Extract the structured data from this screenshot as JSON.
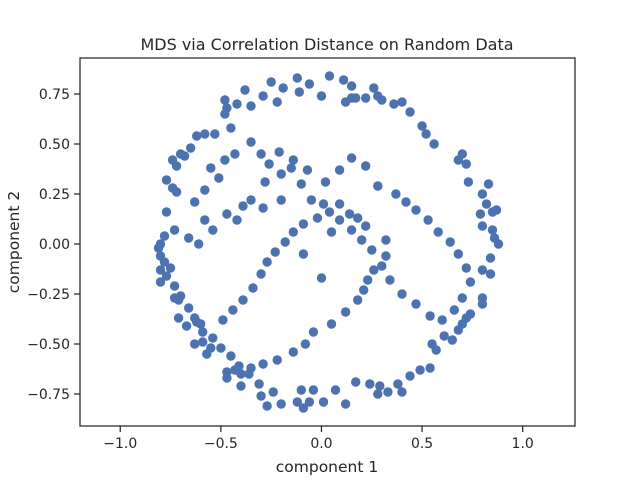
{
  "chart_data": {
    "type": "scatter",
    "title": "MDS via Correlation Distance on Random Data",
    "xlabel": "component 1",
    "ylabel": "component 2",
    "xlim": [
      -1.2,
      1.26
    ],
    "ylim": [
      -0.91,
      0.93
    ],
    "xticks": [
      -1.0,
      -0.5,
      0.0,
      0.5,
      1.0
    ],
    "xtick_labels": [
      "−1.0",
      "−0.5",
      "0.0",
      "0.5",
      "1.0"
    ],
    "yticks": [
      -0.75,
      -0.5,
      -0.25,
      0.0,
      0.25,
      0.5,
      0.75
    ],
    "ytick_labels": [
      "−0.75",
      "−0.50",
      "−0.25",
      "0.00",
      "0.25",
      "0.50",
      "0.75"
    ],
    "grid": false,
    "marker_color": "#4c72b0",
    "points": [
      [
        0.04,
        0.84
      ],
      [
        0.11,
        0.82
      ],
      [
        0.15,
        0.79
      ],
      [
        0.17,
        0.73
      ],
      [
        0.12,
        0.71
      ],
      [
        0.0,
        0.74
      ],
      [
        -0.06,
        0.8
      ],
      [
        -0.11,
        0.76
      ],
      [
        -0.12,
        0.83
      ],
      [
        -0.19,
        0.78
      ],
      [
        -0.25,
        0.81
      ],
      [
        -0.22,
        0.71
      ],
      [
        -0.29,
        0.74
      ],
      [
        -0.35,
        0.69
      ],
      [
        -0.38,
        0.77
      ],
      [
        -0.42,
        0.7
      ],
      [
        -0.48,
        0.72
      ],
      [
        -0.47,
        0.68
      ],
      [
        -0.48,
        0.65
      ],
      [
        -0.45,
        0.58
      ],
      [
        -0.53,
        0.55
      ],
      [
        -0.58,
        0.55
      ],
      [
        -0.62,
        0.54
      ],
      [
        -0.65,
        0.48
      ],
      [
        -0.68,
        0.44
      ],
      [
        -0.7,
        0.45
      ],
      [
        -0.74,
        0.42
      ],
      [
        -0.72,
        0.39
      ],
      [
        -0.77,
        0.32
      ],
      [
        -0.74,
        0.28
      ],
      [
        -0.72,
        0.26
      ],
      [
        -0.77,
        0.16
      ],
      [
        -0.73,
        0.07
      ],
      [
        -0.78,
        0.04
      ],
      [
        -0.8,
        0.0
      ],
      [
        -0.81,
        -0.02
      ],
      [
        -0.8,
        -0.06
      ],
      [
        -0.78,
        -0.09
      ],
      [
        -0.8,
        -0.13
      ],
      [
        -0.77,
        -0.16
      ],
      [
        -0.8,
        -0.19
      ],
      [
        -0.73,
        -0.27
      ],
      [
        -0.71,
        -0.28
      ],
      [
        -0.71,
        -0.37
      ],
      [
        -0.67,
        -0.41
      ],
      [
        -0.62,
        -0.39
      ],
      [
        -0.6,
        -0.4
      ],
      [
        -0.63,
        -0.5
      ],
      [
        -0.59,
        -0.49
      ],
      [
        -0.55,
        -0.52
      ],
      [
        -0.57,
        -0.55
      ],
      [
        -0.47,
        -0.64
      ],
      [
        -0.47,
        -0.67
      ],
      [
        -0.43,
        -0.63
      ],
      [
        -0.4,
        -0.65
      ],
      [
        -0.4,
        -0.71
      ],
      [
        -0.36,
        -0.65
      ],
      [
        -0.31,
        -0.7
      ],
      [
        -0.3,
        -0.76
      ],
      [
        -0.27,
        -0.81
      ],
      [
        -0.24,
        -0.74
      ],
      [
        -0.2,
        -0.8
      ],
      [
        -0.12,
        -0.79
      ],
      [
        -0.1,
        -0.73
      ],
      [
        -0.09,
        -0.82
      ],
      [
        -0.06,
        -0.79
      ],
      [
        -0.04,
        -0.73
      ],
      [
        0.01,
        -0.79
      ],
      [
        0.07,
        -0.73
      ],
      [
        0.12,
        -0.8
      ],
      [
        0.17,
        -0.69
      ],
      [
        0.24,
        -0.7
      ],
      [
        0.29,
        -0.71
      ],
      [
        0.28,
        -0.75
      ],
      [
        0.33,
        -0.74
      ],
      [
        0.38,
        -0.7
      ],
      [
        0.4,
        -0.74
      ],
      [
        0.44,
        -0.66
      ],
      [
        0.49,
        -0.63
      ],
      [
        0.54,
        -0.62
      ],
      [
        0.57,
        -0.53
      ],
      [
        0.55,
        -0.5
      ],
      [
        0.61,
        -0.46
      ],
      [
        0.65,
        -0.48
      ],
      [
        0.68,
        -0.43
      ],
      [
        0.7,
        -0.4
      ],
      [
        0.72,
        -0.37
      ],
      [
        0.74,
        -0.35
      ],
      [
        0.8,
        -0.3
      ],
      [
        0.8,
        -0.27
      ],
      [
        0.84,
        -0.15
      ],
      [
        0.8,
        -0.13
      ],
      [
        0.84,
        -0.07
      ],
      [
        0.88,
        0.0
      ],
      [
        0.86,
        0.03
      ],
      [
        0.85,
        0.07
      ],
      [
        0.85,
        0.16
      ],
      [
        0.87,
        0.17
      ],
      [
        0.82,
        0.2
      ],
      [
        0.83,
        0.3
      ],
      [
        0.8,
        0.25
      ],
      [
        0.79,
        0.15
      ],
      [
        0.8,
        0.09
      ],
      [
        0.73,
        0.31
      ],
      [
        0.72,
        0.4
      ],
      [
        0.7,
        0.45
      ],
      [
        0.68,
        0.42
      ],
      [
        0.56,
        0.5
      ],
      [
        0.52,
        0.55
      ],
      [
        0.5,
        0.59
      ],
      [
        0.44,
        0.66
      ],
      [
        0.4,
        0.71
      ],
      [
        0.36,
        0.7
      ],
      [
        0.3,
        0.72
      ],
      [
        0.28,
        0.74
      ],
      [
        0.26,
        0.78
      ],
      [
        0.22,
        0.73
      ],
      [
        0.15,
        0.73
      ],
      [
        -0.58,
        0.27
      ],
      [
        -0.63,
        0.21
      ],
      [
        -0.58,
        0.12
      ],
      [
        -0.54,
        0.07
      ],
      [
        -0.47,
        0.15
      ],
      [
        -0.42,
        0.12
      ],
      [
        -0.39,
        0.19
      ],
      [
        -0.35,
        0.22
      ],
      [
        -0.28,
        0.31
      ],
      [
        -0.2,
        0.35
      ],
      [
        -0.15,
        0.38
      ],
      [
        -0.1,
        0.3
      ],
      [
        -0.05,
        0.22
      ],
      [
        0.01,
        0.2
      ],
      [
        0.09,
        0.2
      ],
      [
        0.14,
        0.15
      ],
      [
        0.18,
        0.13
      ],
      [
        0.22,
        0.09
      ],
      [
        0.32,
        0.02
      ],
      [
        0.32,
        -0.06
      ],
      [
        0.26,
        -0.13
      ],
      [
        0.23,
        -0.18
      ],
      [
        0.21,
        -0.23
      ],
      [
        0.18,
        -0.28
      ],
      [
        0.12,
        -0.34
      ],
      [
        0.05,
        -0.4
      ],
      [
        -0.04,
        -0.44
      ],
      [
        -0.08,
        -0.5
      ],
      [
        -0.14,
        -0.54
      ],
      [
        -0.22,
        -0.58
      ],
      [
        -0.29,
        -0.6
      ],
      [
        -0.35,
        -0.62
      ],
      [
        -0.41,
        -0.61
      ],
      [
        -0.45,
        -0.56
      ],
      [
        -0.5,
        -0.52
      ],
      [
        -0.54,
        -0.47
      ],
      [
        -0.59,
        -0.44
      ],
      [
        -0.63,
        -0.37
      ],
      [
        -0.66,
        -0.32
      ],
      [
        -0.7,
        -0.26
      ],
      [
        -0.73,
        -0.21
      ],
      [
        -0.75,
        -0.12
      ],
      [
        -0.66,
        0.03
      ],
      [
        -0.61,
        0.0
      ],
      [
        -0.51,
        0.33
      ],
      [
        -0.55,
        0.38
      ],
      [
        -0.48,
        0.42
      ],
      [
        -0.43,
        0.45
      ],
      [
        -0.35,
        0.51
      ],
      [
        -0.3,
        0.45
      ],
      [
        -0.26,
        0.4
      ],
      [
        -0.21,
        0.46
      ],
      [
        -0.14,
        0.42
      ],
      [
        -0.07,
        0.37
      ],
      [
        0.02,
        0.31
      ],
      [
        0.09,
        0.37
      ],
      [
        0.15,
        0.43
      ],
      [
        0.22,
        0.39
      ],
      [
        0.28,
        0.29
      ],
      [
        0.37,
        0.25
      ],
      [
        0.42,
        0.21
      ],
      [
        0.47,
        0.17
      ],
      [
        0.53,
        0.12
      ],
      [
        0.58,
        0.06
      ],
      [
        0.64,
        0.01
      ],
      [
        0.68,
        -0.05
      ],
      [
        0.72,
        -0.12
      ],
      [
        0.74,
        -0.19
      ],
      [
        0.7,
        -0.27
      ],
      [
        0.66,
        -0.33
      ],
      [
        0.6,
        -0.38
      ],
      [
        0.54,
        -0.36
      ],
      [
        0.47,
        -0.3
      ],
      [
        0.4,
        -0.25
      ],
      [
        0.34,
        -0.18
      ],
      [
        0.3,
        -0.11
      ],
      [
        0.25,
        -0.03
      ],
      [
        0.2,
        0.02
      ],
      [
        0.15,
        0.07
      ],
      [
        0.09,
        0.12
      ],
      [
        0.04,
        0.16
      ],
      [
        -0.02,
        0.13
      ],
      [
        -0.09,
        0.1
      ],
      [
        -0.14,
        0.06
      ],
      [
        -0.18,
        0.01
      ],
      [
        -0.23,
        -0.04
      ],
      [
        -0.27,
        -0.09
      ],
      [
        -0.3,
        -0.15
      ],
      [
        -0.34,
        -0.22
      ],
      [
        -0.39,
        -0.28
      ],
      [
        -0.44,
        -0.33
      ],
      [
        -0.49,
        -0.38
      ],
      [
        0.0,
        -0.17
      ],
      [
        -0.09,
        -0.05
      ],
      [
        0.05,
        0.06
      ],
      [
        -0.2,
        0.22
      ],
      [
        -0.29,
        0.18
      ]
    ]
  }
}
